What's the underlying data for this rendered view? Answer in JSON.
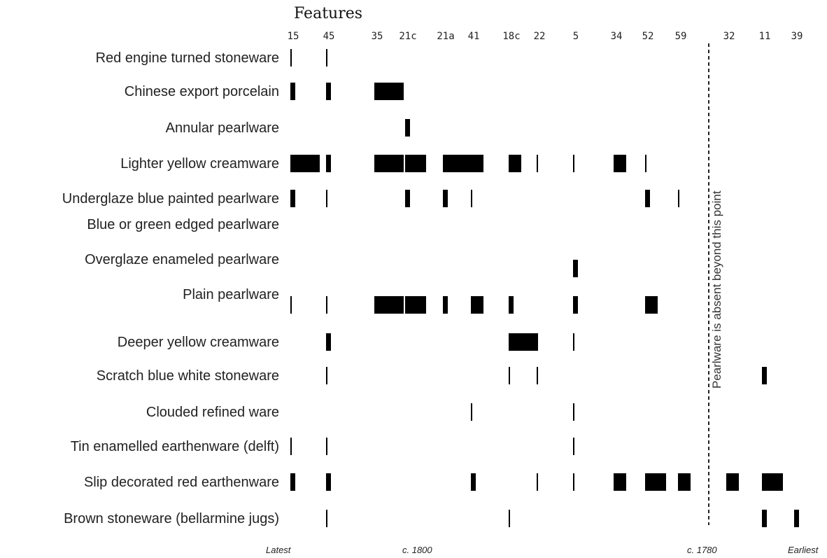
{
  "chart_data": {
    "type": "seriation",
    "title": "Features",
    "features": [
      "15",
      "45",
      "35",
      "21c",
      "21a",
      "41",
      "18c",
      "22",
      "5",
      "34",
      "52",
      "59",
      "32",
      "11",
      "39"
    ],
    "wares": [
      "Red engine turned  stoneware",
      "Chinese export porcelain",
      "Annular pearlware",
      "Lighter yellow creamware",
      "Underglaze blue painted pearlware",
      "Blue or green edged pearlware",
      "Overglaze enameled pearlware",
      "Plain pearlware",
      "Deeper yellow creamware",
      "Scratch blue white stoneware",
      "Clouded refined ware",
      "Tin enamelled earthenware (delft)",
      "Slip decorated red earthenware",
      "Brown stoneware (bellarmine jugs)"
    ],
    "presence": [
      {
        "ware": "Red engine turned  stoneware",
        "feature": "15",
        "level": 1
      },
      {
        "ware": "Red engine turned  stoneware",
        "feature": "45",
        "level": 1
      },
      {
        "ware": "Chinese export porcelain",
        "feature": "15",
        "level": 2
      },
      {
        "ware": "Chinese export porcelain",
        "feature": "45",
        "level": 2
      },
      {
        "ware": "Chinese export porcelain",
        "feature": "35",
        "level": 5
      },
      {
        "ware": "Annular pearlware",
        "feature": "21c",
        "level": 2
      },
      {
        "ware": "Lighter yellow creamware",
        "feature": "15",
        "level": 5
      },
      {
        "ware": "Lighter yellow creamware",
        "feature": "45",
        "level": 2
      },
      {
        "ware": "Lighter yellow creamware",
        "feature": "35",
        "level": 5
      },
      {
        "ware": "Lighter yellow creamware",
        "feature": "21c",
        "level": 4
      },
      {
        "ware": "Lighter yellow creamware",
        "feature": "21a",
        "level": 5
      },
      {
        "ware": "Lighter yellow creamware",
        "feature": "41",
        "level": 3
      },
      {
        "ware": "Lighter yellow creamware",
        "feature": "18c",
        "level": 3
      },
      {
        "ware": "Lighter yellow creamware",
        "feature": "22",
        "level": 1
      },
      {
        "ware": "Lighter yellow creamware",
        "feature": "5",
        "level": 1
      },
      {
        "ware": "Lighter yellow creamware",
        "feature": "34",
        "level": 3
      },
      {
        "ware": "Lighter yellow creamware",
        "feature": "52",
        "level": 1
      },
      {
        "ware": "Underglaze blue painted pearlware",
        "feature": "15",
        "level": 2
      },
      {
        "ware": "Underglaze blue painted pearlware",
        "feature": "45",
        "level": 1
      },
      {
        "ware": "Underglaze blue painted pearlware",
        "feature": "21c",
        "level": 2
      },
      {
        "ware": "Underglaze blue painted pearlware",
        "feature": "21a",
        "level": 2
      },
      {
        "ware": "Underglaze blue painted pearlware",
        "feature": "41",
        "level": 1
      },
      {
        "ware": "Underglaze blue painted pearlware",
        "feature": "52",
        "level": 2
      },
      {
        "ware": "Underglaze blue painted pearlware",
        "feature": "59",
        "level": 1
      },
      {
        "ware": "Overglaze enameled pearlware",
        "feature": "5",
        "level": 2
      },
      {
        "ware": "Plain pearlware",
        "feature": "15",
        "level": 1
      },
      {
        "ware": "Plain pearlware",
        "feature": "45",
        "level": 1
      },
      {
        "ware": "Plain pearlware",
        "feature": "35",
        "level": 5
      },
      {
        "ware": "Plain pearlware",
        "feature": "21c",
        "level": 4
      },
      {
        "ware": "Plain pearlware",
        "feature": "21a",
        "level": 2
      },
      {
        "ware": "Plain pearlware",
        "feature": "41",
        "level": 3
      },
      {
        "ware": "Plain pearlware",
        "feature": "18c",
        "level": 2
      },
      {
        "ware": "Plain pearlware",
        "feature": "5",
        "level": 2
      },
      {
        "ware": "Plain pearlware",
        "feature": "52",
        "level": 3
      },
      {
        "ware": "Deeper yellow creamware",
        "feature": "45",
        "level": 2
      },
      {
        "ware": "Deeper yellow creamware",
        "feature": "18c",
        "level": 5
      },
      {
        "ware": "Deeper yellow creamware",
        "feature": "5",
        "level": 1
      },
      {
        "ware": "Scratch blue white stoneware",
        "feature": "45",
        "level": 1
      },
      {
        "ware": "Scratch blue white stoneware",
        "feature": "18c",
        "level": 1
      },
      {
        "ware": "Scratch blue white stoneware",
        "feature": "22",
        "level": 1
      },
      {
        "ware": "Scratch blue white stoneware",
        "feature": "11",
        "level": 2
      },
      {
        "ware": "Clouded refined ware",
        "feature": "41",
        "level": 1
      },
      {
        "ware": "Clouded refined ware",
        "feature": "5",
        "level": 1
      },
      {
        "ware": "Tin enamelled earthenware (delft)",
        "feature": "15",
        "level": 1
      },
      {
        "ware": "Tin enamelled earthenware (delft)",
        "feature": "45",
        "level": 1
      },
      {
        "ware": "Tin enamelled earthenware (delft)",
        "feature": "5",
        "level": 1
      },
      {
        "ware": "Slip decorated red earthenware",
        "feature": "15",
        "level": 2
      },
      {
        "ware": "Slip decorated red earthenware",
        "feature": "45",
        "level": 2
      },
      {
        "ware": "Slip decorated red earthenware",
        "feature": "41",
        "level": 2
      },
      {
        "ware": "Slip decorated red earthenware",
        "feature": "22",
        "level": 1
      },
      {
        "ware": "Slip decorated red earthenware",
        "feature": "5",
        "level": 1
      },
      {
        "ware": "Slip decorated red earthenware",
        "feature": "34",
        "level": 3
      },
      {
        "ware": "Slip decorated red earthenware",
        "feature": "52",
        "level": 4
      },
      {
        "ware": "Slip decorated red earthenware",
        "feature": "59",
        "level": 3
      },
      {
        "ware": "Slip decorated red earthenware",
        "feature": "32",
        "level": 3
      },
      {
        "ware": "Slip decorated red earthenware",
        "feature": "11",
        "level": 4
      },
      {
        "ware": "Brown stoneware (bellarmine jugs)",
        "feature": "45",
        "level": 1
      },
      {
        "ware": "Brown stoneware (bellarmine jugs)",
        "feature": "18c",
        "level": 1
      },
      {
        "ware": "Brown stoneware (bellarmine jugs)",
        "feature": "11",
        "level": 2
      },
      {
        "ware": "Brown stoneware (bellarmine jugs)",
        "feature": "39",
        "level": 2
      }
    ],
    "divider_after_feature": "59",
    "divider_note": "Pearlware is absent beyond this point",
    "timeline": [
      "Latest",
      "c. 1800",
      "c. 1780",
      "Earliest"
    ]
  },
  "colors": {
    "bar": "#000000",
    "text": "#222222"
  }
}
